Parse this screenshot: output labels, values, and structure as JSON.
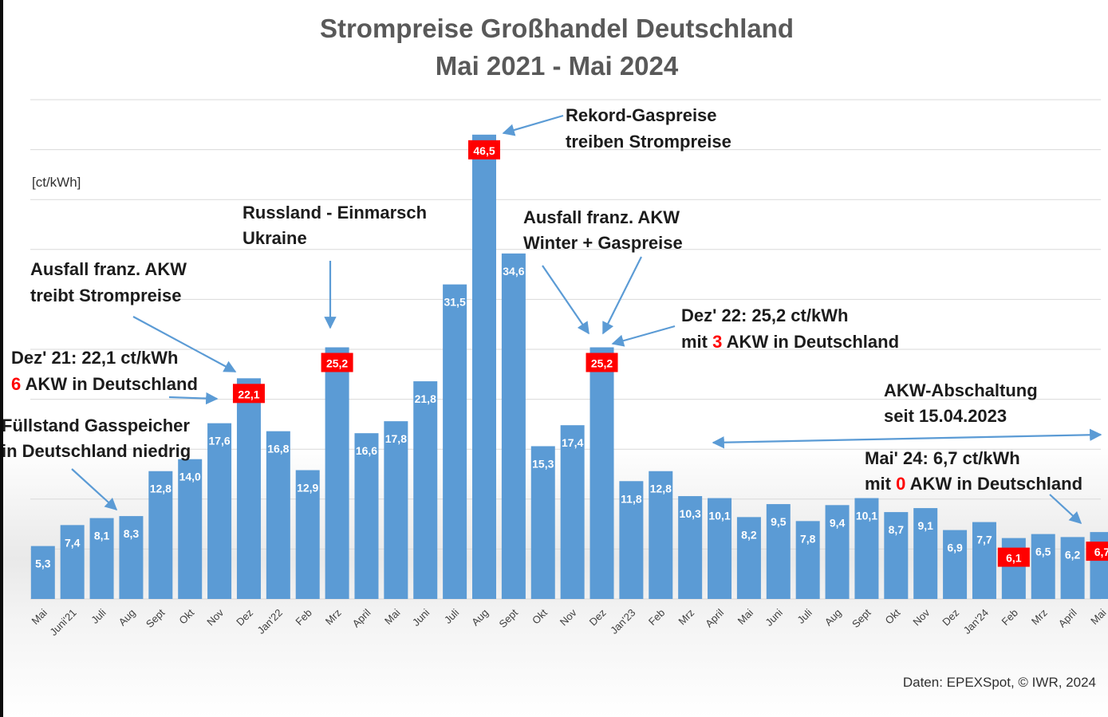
{
  "chart_data": {
    "type": "bar",
    "title": "Strompreise Großhandel Deutschland",
    "subtitle": "Mai 2021 - Mai 2024",
    "ylabel": "[ct/kWh]",
    "ylim": [
      0,
      50
    ],
    "grid": true,
    "bar_color": "#5b9bd5",
    "highlight_color": "#ff0000",
    "categories": [
      "Mai",
      "Juni'21",
      "Juli",
      "Aug",
      "Sept",
      "Okt",
      "Nov",
      "Dez",
      "Jan'22",
      "Feb",
      "Mrz",
      "April",
      "Mai",
      "Juni",
      "Juli",
      "Aug",
      "Sept",
      "Okt",
      "Nov",
      "Dez",
      "Jan'23",
      "Feb",
      "Mrz",
      "April",
      "Mai",
      "Juni",
      "Juli",
      "Aug",
      "Sept",
      "Okt",
      "Nov",
      "Dez",
      "Jan'24",
      "Feb",
      "Mrz",
      "April",
      "Mai"
    ],
    "values": [
      5.3,
      7.4,
      8.1,
      8.3,
      12.8,
      14.0,
      17.6,
      22.1,
      16.8,
      12.9,
      25.2,
      16.6,
      17.8,
      21.8,
      31.5,
      46.5,
      34.6,
      15.3,
      17.4,
      25.2,
      11.8,
      12.8,
      10.3,
      10.1,
      8.2,
      9.5,
      7.8,
      9.4,
      10.1,
      8.7,
      9.1,
      6.9,
      7.7,
      6.1,
      6.5,
      6.2,
      6.7
    ],
    "value_labels": [
      "5,3",
      "7,4",
      "8,1",
      "8,3",
      "12,8",
      "14,0",
      "17,6",
      "22,1",
      "16,8",
      "12,9",
      "25,2",
      "16,6",
      "17,8",
      "21,8",
      "31,5",
      "46,5",
      "34,6",
      "15,3",
      "17,4",
      "25,2",
      "11,8",
      "12,8",
      "10,3",
      "10,1",
      "8,2",
      "9,5",
      "7,8",
      "9,4",
      "10,1",
      "8,7",
      "9,1",
      "6,9",
      "7,7",
      "6,1",
      "6,5",
      "6,2",
      "6,7"
    ],
    "highlighted_indices": [
      7,
      10,
      15,
      19,
      33,
      36
    ]
  },
  "annotations": {
    "rekord": [
      "Rekord-Gaspreise",
      "treiben Strompreise"
    ],
    "russland": [
      "Russland - Einmarsch",
      "Ukraine"
    ],
    "ausfall1": [
      "Ausfall franz. AKW",
      "treibt Strompreise"
    ],
    "ausfall2": [
      "Ausfall franz. AKW",
      "Winter + Gaspreise"
    ],
    "dez21": {
      "line1": "Dez' 21: 22,1 ct/kWh",
      "num": "6",
      "rest": " AKW in Deutschland"
    },
    "dez22": {
      "line1": "Dez' 22: 25,2 ct/kWh",
      "pre": "mit ",
      "num": "3",
      "rest": " AKW in Deutschland"
    },
    "gas": [
      "Füllstand Gasspeicher",
      "in Deutschland niedrig"
    ],
    "abschaltung": [
      "AKW-Abschaltung",
      "seit 15.04.2023"
    ],
    "mai24": {
      "line1": "Mai' 24: 6,7 ct/kWh",
      "pre": "mit ",
      "num": "0",
      "rest": " AKW in Deutschland"
    }
  },
  "source": "Daten: EPEXSpot, © IWR, 2024"
}
